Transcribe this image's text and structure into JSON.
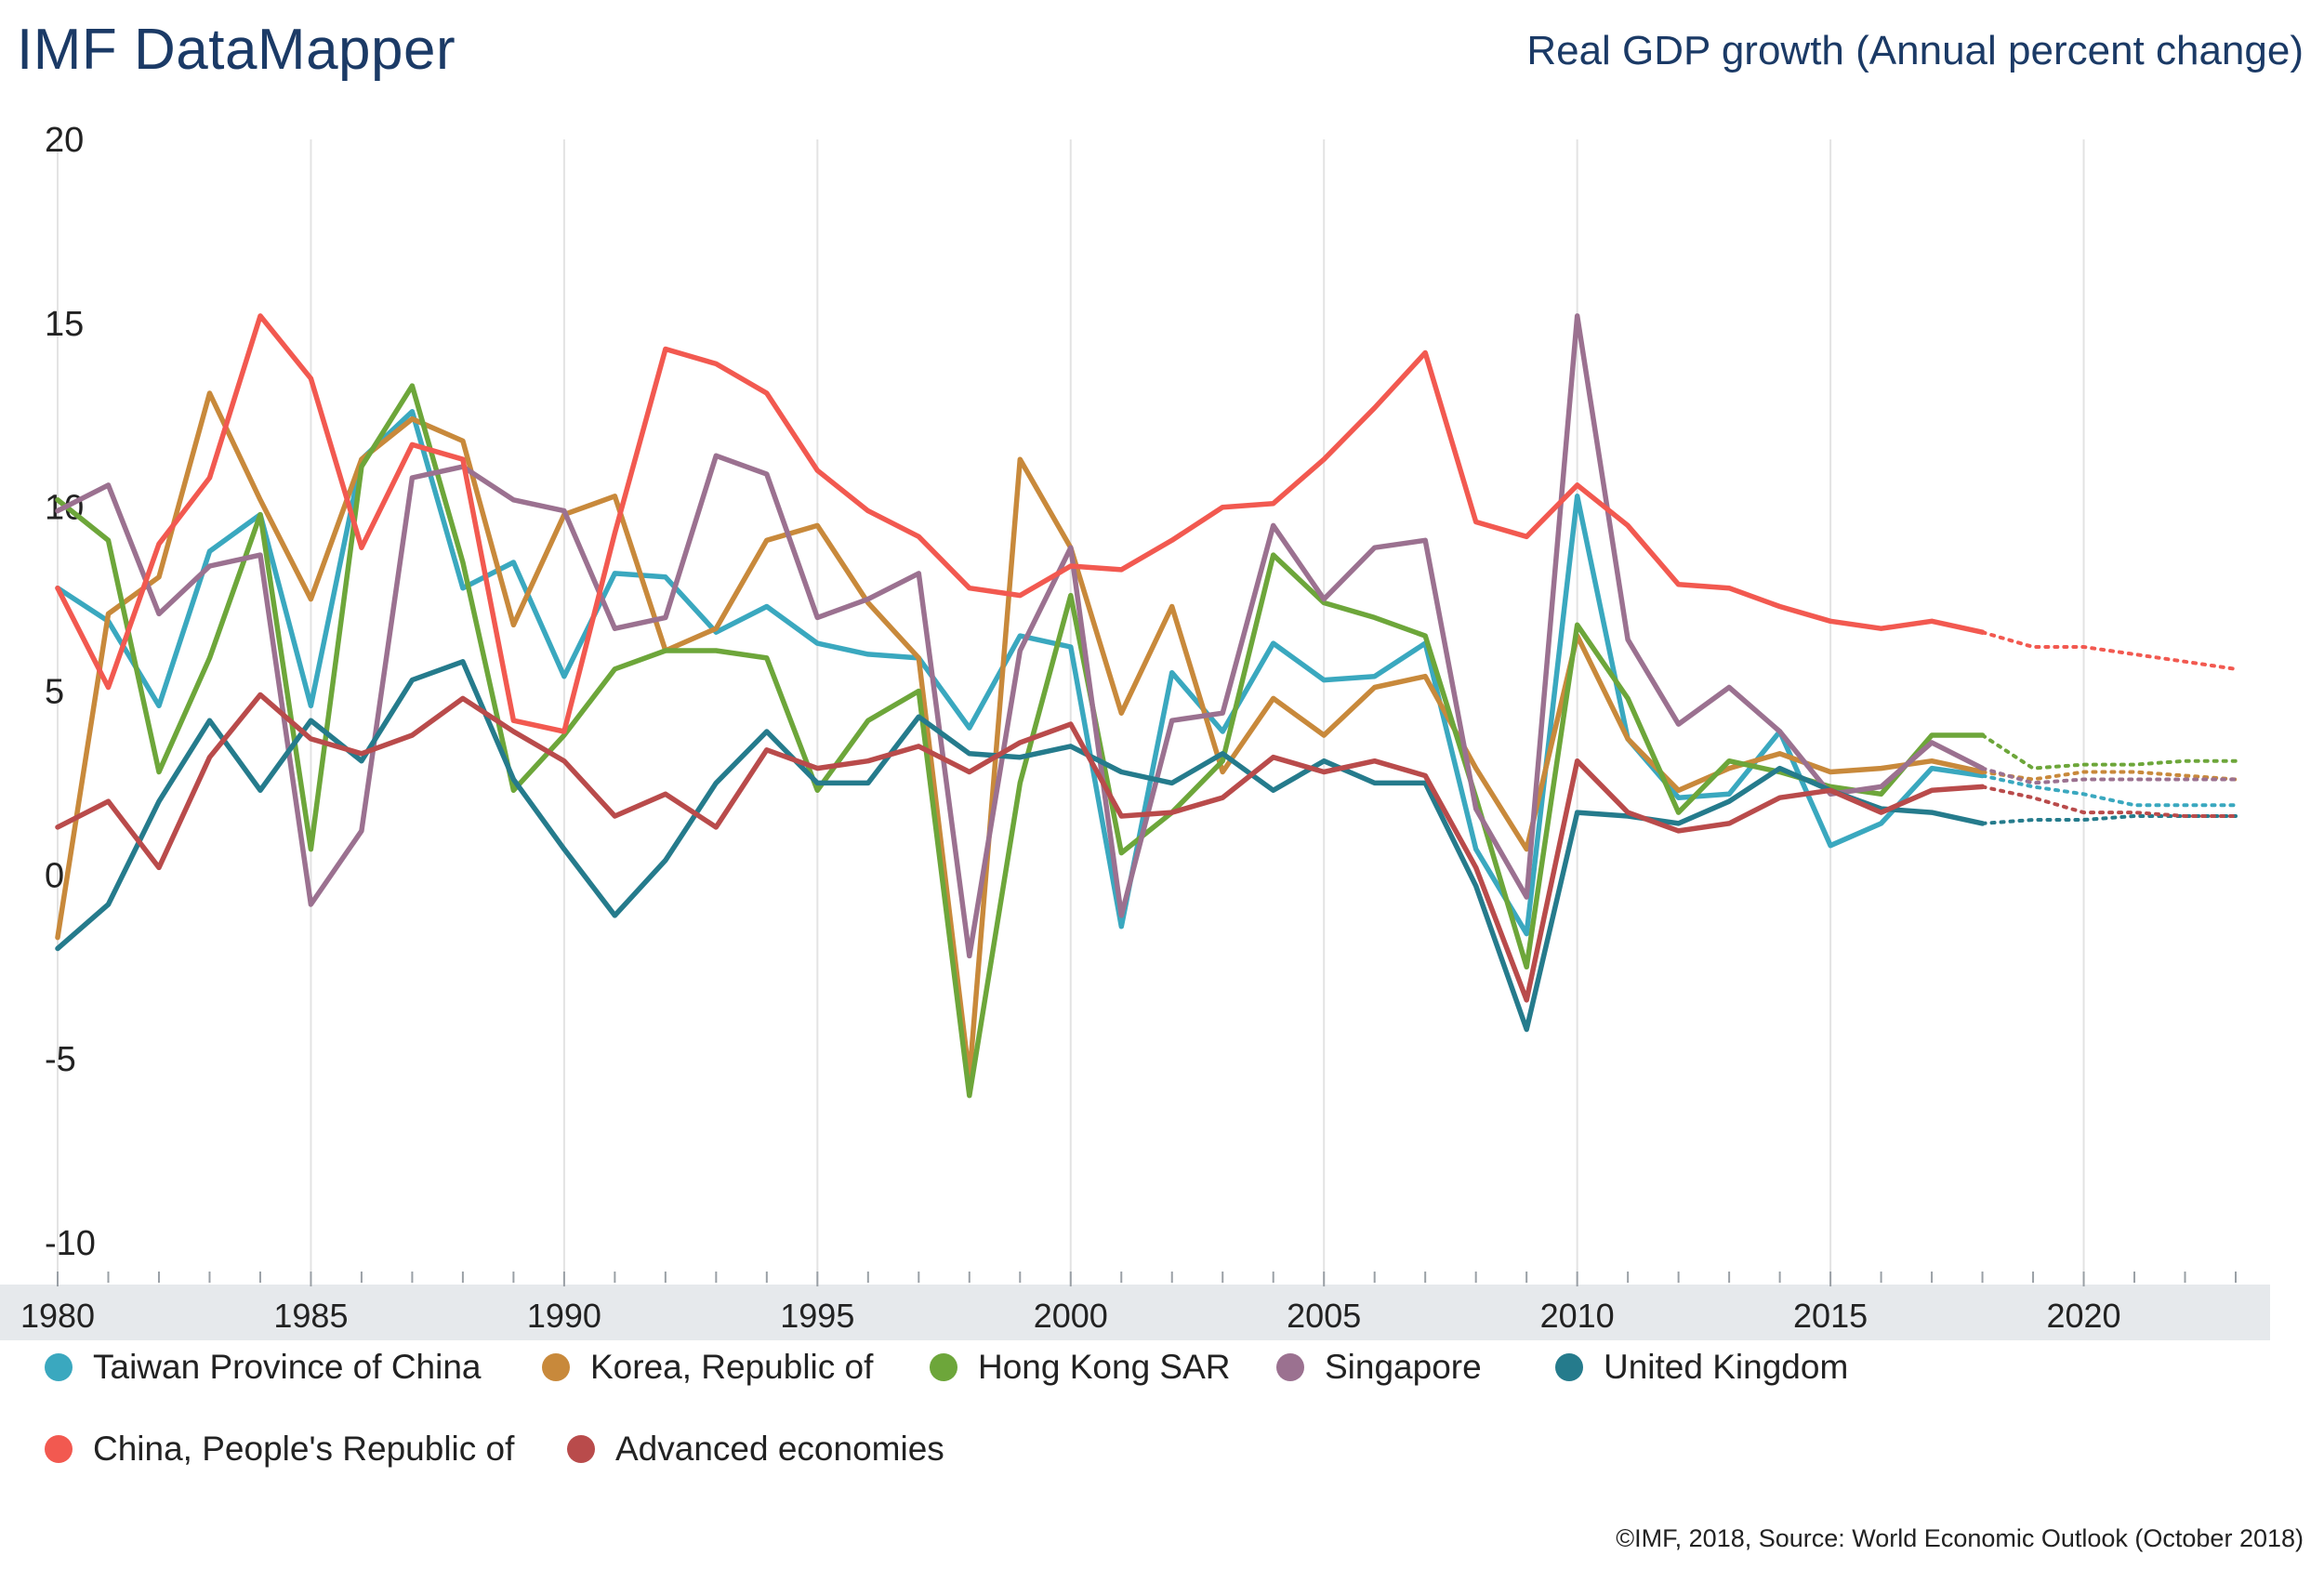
{
  "header": {
    "brand": "IMF DataMapper",
    "title": "Real GDP growth (Annual percent change)"
  },
  "footer": {
    "credit": "©IMF, 2018, Source: World Economic Outlook (October 2018)"
  },
  "chart_data": {
    "type": "line",
    "title": "Real GDP growth (Annual percent change)",
    "xlabel": "",
    "ylabel": "",
    "x": [
      1980,
      1981,
      1982,
      1983,
      1984,
      1985,
      1986,
      1987,
      1988,
      1989,
      1990,
      1991,
      1992,
      1993,
      1994,
      1995,
      1996,
      1997,
      1998,
      1999,
      2000,
      2001,
      2002,
      2003,
      2004,
      2005,
      2006,
      2007,
      2008,
      2009,
      2010,
      2011,
      2012,
      2013,
      2014,
      2015,
      2016,
      2017,
      2018,
      2019,
      2020,
      2021,
      2022,
      2023
    ],
    "xlim": [
      1980,
      2023
    ],
    "ylim": [
      -10,
      20
    ],
    "yticks": [
      20,
      15,
      10,
      5,
      0,
      -5,
      -10
    ],
    "ytick_labels": [
      "20",
      "15",
      "10",
      "5",
      "0",
      "-5",
      "-10"
    ],
    "xticks": [
      1980,
      1985,
      1990,
      1995,
      2000,
      2005,
      2010,
      2015,
      2020
    ],
    "xtick_labels": [
      "1980",
      "1985",
      "1990",
      "1995",
      "2000",
      "2005",
      "2010",
      "2015",
      "2020"
    ],
    "grid": true,
    "legend_position": "bottom",
    "forecast_start": 2018,
    "series": [
      {
        "name": "Taiwan Province of China",
        "color": "#3aa8bf",
        "values": [
          7.8,
          6.9,
          4.6,
          8.8,
          9.8,
          4.6,
          11.3,
          12.6,
          7.8,
          8.5,
          5.4,
          8.2,
          8.1,
          6.6,
          7.3,
          6.3,
          6.0,
          5.9,
          4.0,
          6.5,
          6.2,
          -1.4,
          5.5,
          3.9,
          6.3,
          5.3,
          5.4,
          6.3,
          0.7,
          -1.6,
          10.3,
          3.7,
          2.1,
          2.2,
          3.9,
          0.8,
          1.4,
          2.9,
          2.7,
          2.4,
          2.2,
          1.9,
          1.9,
          1.9
        ]
      },
      {
        "name": "Korea, Republic of",
        "color": "#c8893b",
        "values": [
          -1.7,
          7.1,
          8.1,
          13.1,
          10.2,
          7.5,
          11.3,
          12.4,
          11.8,
          6.8,
          9.8,
          10.3,
          6.1,
          6.7,
          9.1,
          9.5,
          7.4,
          5.9,
          -5.5,
          11.3,
          8.9,
          4.4,
          7.3,
          2.8,
          4.8,
          3.8,
          5.1,
          5.4,
          2.9,
          0.7,
          6.5,
          3.7,
          2.3,
          2.9,
          3.3,
          2.8,
          2.9,
          3.1,
          2.8,
          2.6,
          2.8,
          2.8,
          2.7,
          2.6
        ]
      },
      {
        "name": "Hong Kong SAR",
        "color": "#6da63a",
        "values": [
          10.2,
          9.1,
          2.8,
          5.9,
          9.8,
          0.7,
          11.1,
          13.3,
          8.5,
          2.3,
          3.8,
          5.6,
          6.1,
          6.1,
          5.9,
          2.3,
          4.2,
          5.0,
          -6.0,
          2.5,
          7.6,
          0.6,
          1.7,
          3.1,
          8.7,
          7.4,
          7.0,
          6.5,
          2.1,
          -2.5,
          6.8,
          4.8,
          1.7,
          3.1,
          2.8,
          2.4,
          2.2,
          3.8,
          3.8,
          2.9,
          3.0,
          3.0,
          3.1,
          3.1
        ]
      },
      {
        "name": "Singapore",
        "color": "#9b7190",
        "values": [
          9.9,
          10.6,
          7.1,
          8.4,
          8.7,
          -0.8,
          1.2,
          10.8,
          11.1,
          10.2,
          9.9,
          6.7,
          7.0,
          11.4,
          10.9,
          7.0,
          7.5,
          8.2,
          -2.2,
          6.1,
          8.9,
          -1.1,
          4.2,
          4.4,
          9.5,
          7.5,
          8.9,
          9.1,
          1.8,
          -0.6,
          15.2,
          6.4,
          4.1,
          5.1,
          3.9,
          2.2,
          2.4,
          3.6,
          2.9,
          2.5,
          2.6,
          2.6,
          2.6,
          2.6
        ]
      },
      {
        "name": "United Kingdom",
        "color": "#257b8c",
        "values": [
          -2.0,
          -0.8,
          2.0,
          4.2,
          2.3,
          4.2,
          3.1,
          5.3,
          5.8,
          2.6,
          0.7,
          -1.1,
          0.4,
          2.5,
          3.9,
          2.5,
          2.5,
          4.3,
          3.3,
          3.2,
          3.5,
          2.8,
          2.5,
          3.3,
          2.3,
          3.1,
          2.5,
          2.5,
          -0.3,
          -4.2,
          1.7,
          1.6,
          1.4,
          2.0,
          2.9,
          2.3,
          1.8,
          1.7,
          1.4,
          1.5,
          1.5,
          1.6,
          1.6,
          1.6
        ]
      },
      {
        "name": "China, People's Republic of",
        "color": "#f25950",
        "values": [
          7.8,
          5.1,
          9.0,
          10.8,
          15.2,
          13.5,
          8.9,
          11.7,
          11.3,
          4.2,
          3.9,
          9.3,
          14.3,
          13.9,
          13.1,
          11.0,
          9.9,
          9.2,
          7.8,
          7.6,
          8.4,
          8.3,
          9.1,
          10.0,
          10.1,
          11.3,
          12.7,
          14.2,
          9.6,
          9.2,
          10.6,
          9.5,
          7.9,
          7.8,
          7.3,
          6.9,
          6.7,
          6.9,
          6.6,
          6.2,
          6.2,
          6.0,
          5.8,
          5.6
        ]
      },
      {
        "name": "Advanced economies",
        "color": "#b94b4b",
        "values": [
          1.3,
          2.0,
          0.2,
          3.2,
          4.9,
          3.7,
          3.3,
          3.8,
          4.8,
          3.9,
          3.1,
          1.6,
          2.2,
          1.3,
          3.4,
          2.9,
          3.1,
          3.5,
          2.8,
          3.6,
          4.1,
          1.6,
          1.7,
          2.1,
          3.2,
          2.8,
          3.1,
          2.7,
          0.2,
          -3.4,
          3.1,
          1.7,
          1.2,
          1.4,
          2.1,
          2.3,
          1.7,
          2.3,
          2.4,
          2.1,
          1.7,
          1.7,
          1.6,
          1.6
        ]
      }
    ]
  }
}
